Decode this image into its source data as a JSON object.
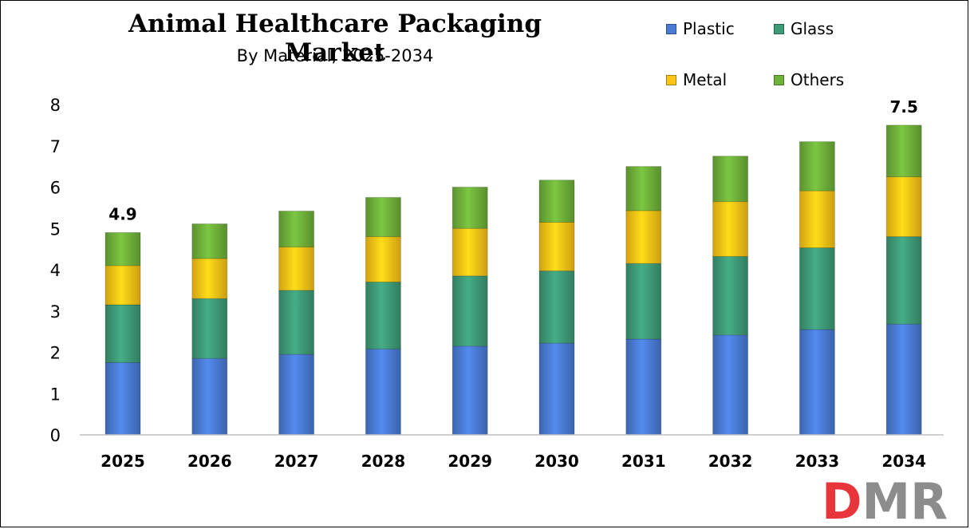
{
  "chart_data": {
    "type": "bar",
    "stacked": true,
    "title": "Animal Healthcare Packaging Market",
    "subtitle": "By Material, 2025-2034",
    "categories": [
      "2025",
      "2026",
      "2027",
      "2028",
      "2029",
      "2030",
      "2031",
      "2032",
      "2033",
      "2034"
    ],
    "series": [
      {
        "name": "Plastic",
        "color": "#4A7CD6",
        "values": [
          1.75,
          1.85,
          1.95,
          2.08,
          2.15,
          2.22,
          2.32,
          2.42,
          2.55,
          2.68
        ]
      },
      {
        "name": "Glass",
        "color": "#3E9B78",
        "values": [
          1.4,
          1.45,
          1.55,
          1.62,
          1.7,
          1.75,
          1.83,
          1.9,
          1.98,
          2.12
        ]
      },
      {
        "name": "Metal",
        "color": "#FFC515",
        "values": [
          0.95,
          0.97,
          1.05,
          1.1,
          1.15,
          1.18,
          1.28,
          1.33,
          1.38,
          1.45
        ]
      },
      {
        "name": "Others",
        "color": "#6FB23A",
        "values": [
          0.8,
          0.84,
          0.87,
          0.95,
          1.0,
          1.02,
          1.07,
          1.1,
          1.19,
          1.25
        ]
      }
    ],
    "data_labels": [
      {
        "category": "2025",
        "text": "4.9"
      },
      {
        "category": "2034",
        "text": "7.5"
      }
    ],
    "yticks": [
      "0",
      "1",
      "2",
      "3",
      "4",
      "5",
      "6",
      "7",
      "8"
    ],
    "ylim": [
      0,
      8
    ],
    "xlabel": "",
    "ylabel": "",
    "grid": false,
    "legend_position": "top-right"
  },
  "logo": {
    "text": "DMR",
    "colors": {
      "d": "#E8353B",
      "m": "#8C8C8C",
      "r": "#8C8C8C"
    }
  }
}
